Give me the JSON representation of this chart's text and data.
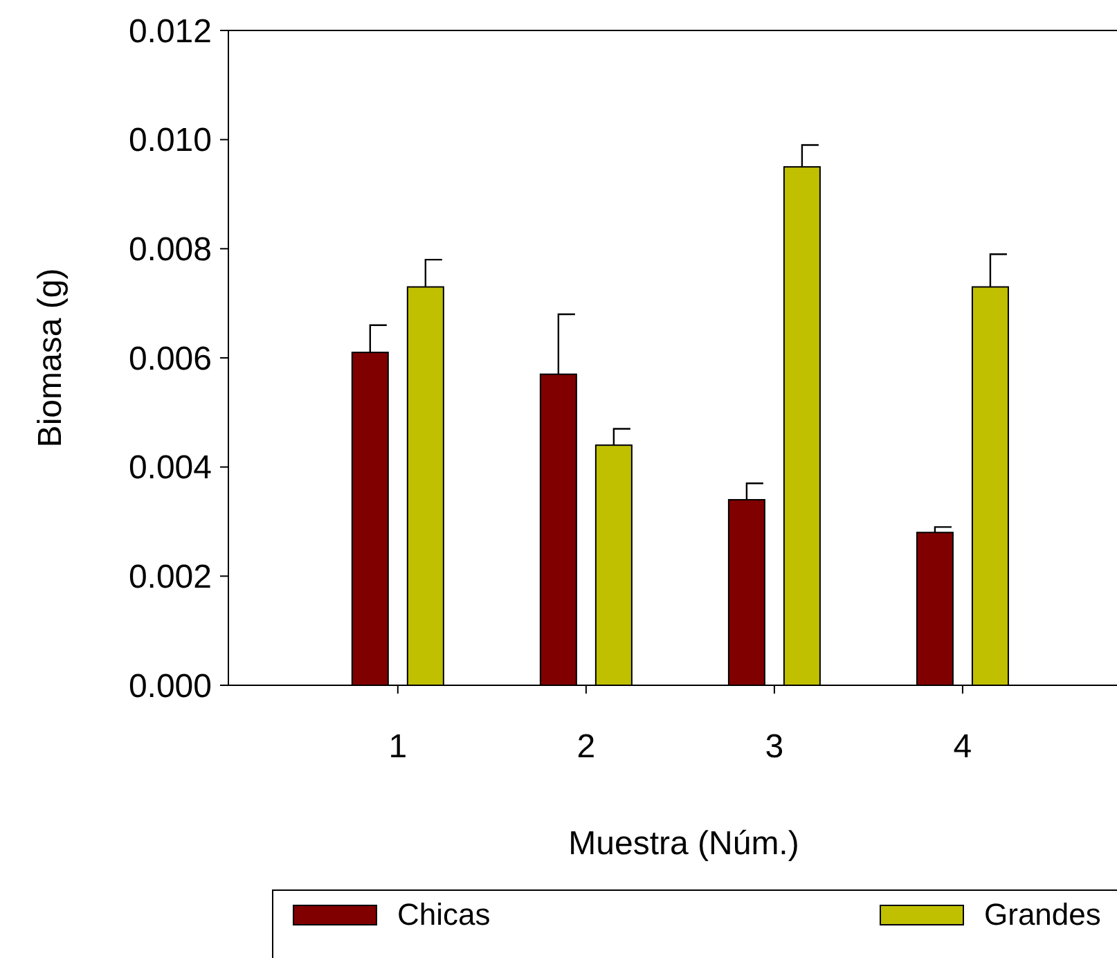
{
  "chart_data": {
    "type": "bar",
    "xlabel": "Muestra (Núm.)",
    "ylabel": "Biomasa (g)",
    "categories": [
      "1",
      "2",
      "3",
      "4"
    ],
    "series": [
      {
        "name": "Chicas",
        "color": "#800000",
        "values": [
          0.0061,
          0.0057,
          0.0034,
          0.0028
        ],
        "errors": [
          0.0005,
          0.0011,
          0.0003,
          0.0001
        ]
      },
      {
        "name": "Grandes",
        "color": "#c0c000",
        "values": [
          0.0073,
          0.0044,
          0.0095,
          0.0073
        ],
        "errors": [
          0.0005,
          0.0003,
          0.0004,
          0.0006
        ]
      }
    ],
    "ylim": [
      0,
      0.012
    ],
    "yticks": [
      {
        "value": 0,
        "label": "0.000"
      },
      {
        "value": 0.002,
        "label": "0.002"
      },
      {
        "value": 0.004,
        "label": "0.004"
      },
      {
        "value": 0.006,
        "label": "0.006"
      },
      {
        "value": 0.008,
        "label": "0.008"
      },
      {
        "value": 0.01,
        "label": "0.010"
      },
      {
        "value": 0.012,
        "label": "0.012"
      }
    ],
    "legend": "bottom",
    "grid": false
  }
}
